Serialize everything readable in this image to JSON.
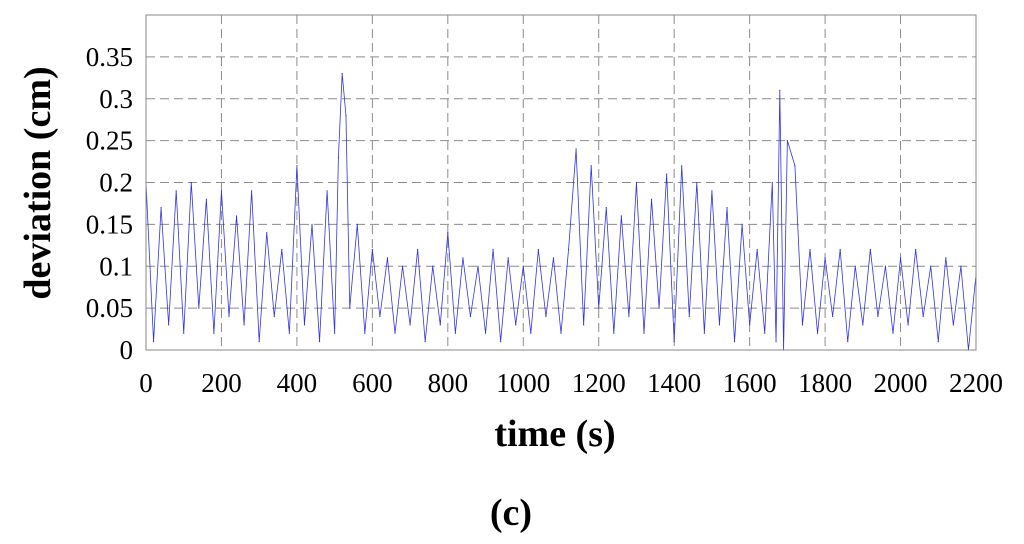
{
  "chart_data": {
    "type": "line",
    "xlabel": "time (s)",
    "ylabel": "deviation (cm)",
    "panel_label": "(c)",
    "xlim": [
      0,
      2200
    ],
    "ylim": [
      0,
      0.4
    ],
    "xticks": [
      0,
      200,
      400,
      600,
      800,
      1000,
      1200,
      1400,
      1600,
      1800,
      2000,
      2200
    ],
    "yticks": [
      0,
      0.05,
      0.1,
      0.15,
      0.2,
      0.25,
      0.3,
      0.35
    ],
    "xtick_labels": [
      "0",
      "200",
      "400",
      "600",
      "800",
      "1000",
      "1200",
      "1400",
      "1600",
      "1800",
      "2000",
      "2200"
    ],
    "ytick_labels": [
      "0",
      "0.05",
      "0.1",
      "0.15",
      "0.2",
      "0.25",
      "0.3",
      "0.35"
    ],
    "grid": true,
    "series": [
      {
        "color": "#3333dd",
        "x": [
          0,
          20,
          40,
          60,
          80,
          100,
          120,
          140,
          160,
          180,
          200,
          220,
          240,
          260,
          280,
          300,
          320,
          340,
          360,
          380,
          400,
          420,
          440,
          460,
          480,
          500,
          510,
          520,
          530,
          540,
          560,
          580,
          600,
          620,
          640,
          660,
          680,
          700,
          720,
          740,
          760,
          780,
          800,
          820,
          840,
          860,
          880,
          900,
          920,
          940,
          960,
          980,
          1000,
          1020,
          1040,
          1060,
          1080,
          1100,
          1120,
          1140,
          1160,
          1180,
          1200,
          1220,
          1240,
          1260,
          1280,
          1300,
          1320,
          1340,
          1360,
          1380,
          1400,
          1420,
          1440,
          1460,
          1480,
          1500,
          1520,
          1540,
          1560,
          1580,
          1600,
          1620,
          1640,
          1660,
          1670,
          1680,
          1690,
          1700,
          1720,
          1740,
          1760,
          1780,
          1800,
          1820,
          1840,
          1860,
          1880,
          1900,
          1920,
          1940,
          1960,
          1980,
          2000,
          2020,
          2040,
          2060,
          2080,
          2100,
          2120,
          2140,
          2160,
          2180,
          2200
        ],
        "y": [
          0.2,
          0.01,
          0.17,
          0.03,
          0.19,
          0.02,
          0.2,
          0.05,
          0.18,
          0.02,
          0.19,
          0.04,
          0.16,
          0.03,
          0.19,
          0.01,
          0.14,
          0.04,
          0.12,
          0.02,
          0.22,
          0.03,
          0.15,
          0.01,
          0.19,
          0.02,
          0.23,
          0.33,
          0.28,
          0.05,
          0.15,
          0.02,
          0.12,
          0.04,
          0.11,
          0.02,
          0.1,
          0.03,
          0.12,
          0.01,
          0.1,
          0.03,
          0.14,
          0.02,
          0.11,
          0.04,
          0.1,
          0.02,
          0.12,
          0.01,
          0.11,
          0.03,
          0.1,
          0.02,
          0.12,
          0.04,
          0.11,
          0.02,
          0.12,
          0.24,
          0.03,
          0.22,
          0.05,
          0.17,
          0.02,
          0.16,
          0.04,
          0.2,
          0.02,
          0.18,
          0.05,
          0.21,
          0.01,
          0.22,
          0.04,
          0.2,
          0.02,
          0.19,
          0.03,
          0.17,
          0.01,
          0.15,
          0.03,
          0.12,
          0.02,
          0.2,
          0.01,
          0.31,
          0.0,
          0.25,
          0.22,
          0.03,
          0.12,
          0.02,
          0.11,
          0.04,
          0.12,
          0.01,
          0.1,
          0.03,
          0.12,
          0.04,
          0.1,
          0.02,
          0.11,
          0.03,
          0.12,
          0.04,
          0.1,
          0.01,
          0.11,
          0.03,
          0.1,
          0.0,
          0.09
        ]
      }
    ]
  }
}
